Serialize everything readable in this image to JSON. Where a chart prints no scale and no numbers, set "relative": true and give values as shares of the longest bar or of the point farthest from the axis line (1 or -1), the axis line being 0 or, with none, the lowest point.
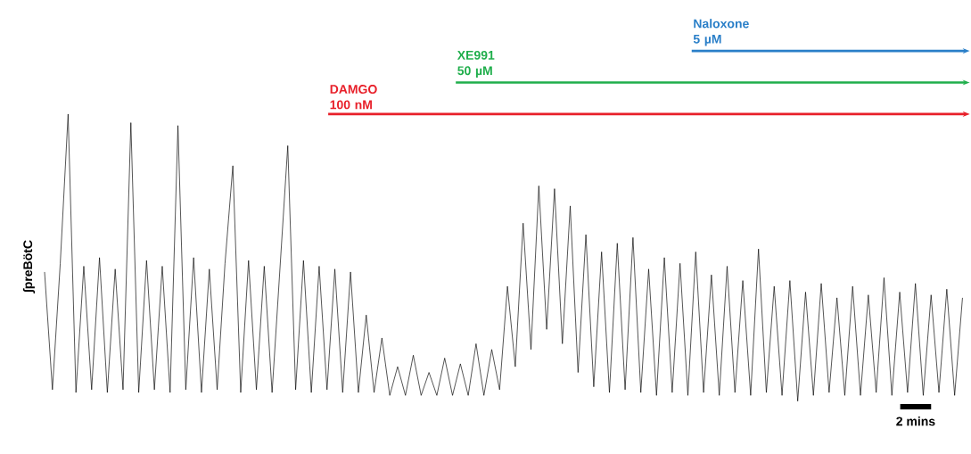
{
  "chart_data": {
    "type": "line",
    "relative": true,
    "ylabel": "∫preBötC",
    "color": "#000000",
    "line_style": "solid",
    "tick_labels": false,
    "categories": [
      null,
      null,
      null,
      null,
      null,
      null,
      null,
      null,
      null,
      null,
      null,
      null,
      null,
      null,
      null,
      null,
      null,
      null,
      null,
      null,
      null,
      null,
      null,
      null,
      null,
      null,
      null,
      null,
      null,
      null,
      null,
      null,
      null,
      null,
      null,
      null,
      null,
      null,
      null,
      null,
      null,
      null,
      null,
      null,
      null,
      null,
      null,
      null,
      null,
      null,
      null,
      null,
      null,
      null,
      null,
      null,
      null,
      null,
      null,
      null,
      null,
      null,
      null,
      null,
      null,
      null,
      null,
      null,
      null,
      null,
      null,
      null,
      null,
      null,
      null,
      null,
      null,
      null,
      null,
      null,
      null,
      null,
      null,
      null,
      null,
      null,
      null,
      null,
      null,
      null,
      null,
      null,
      null,
      null,
      null,
      null,
      null,
      null,
      null,
      null,
      null,
      null,
      null,
      null,
      null,
      null,
      null,
      null,
      null,
      null,
      null,
      null,
      null,
      null,
      null,
      null,
      null,
      null
    ],
    "values": [
      0.45,
      0.04,
      0.48,
      1.0,
      0.03,
      0.47,
      0.04,
      0.5,
      0.03,
      0.46,
      0.04,
      0.97,
      0.03,
      0.49,
      0.04,
      0.47,
      0.03,
      0.96,
      0.04,
      0.5,
      0.03,
      0.46,
      0.04,
      0.48,
      0.82,
      0.03,
      0.49,
      0.04,
      0.47,
      0.03,
      0.46,
      0.89,
      0.04,
      0.49,
      0.03,
      0.47,
      0.04,
      0.46,
      0.03,
      0.45,
      0.03,
      0.3,
      0.03,
      0.22,
      0.02,
      0.12,
      0.02,
      0.16,
      0.02,
      0.1,
      0.02,
      0.15,
      0.02,
      0.13,
      0.02,
      0.2,
      0.02,
      0.18,
      0.04,
      0.4,
      0.12,
      0.62,
      0.18,
      0.75,
      0.25,
      0.74,
      0.2,
      0.68,
      0.1,
      0.58,
      0.05,
      0.52,
      0.03,
      0.55,
      0.04,
      0.57,
      0.03,
      0.46,
      0.02,
      0.5,
      0.03,
      0.48,
      0.02,
      0.52,
      0.03,
      0.44,
      0.02,
      0.47,
      0.03,
      0.42,
      0.02,
      0.53,
      0.03,
      0.4,
      0.02,
      0.42,
      0.0,
      0.38,
      0.02,
      0.41,
      0.03,
      0.36,
      0.02,
      0.4,
      0.02,
      0.37,
      0.03,
      0.43,
      0.02,
      0.38,
      0.03,
      0.41,
      0.02,
      0.37,
      0.03,
      0.39,
      0.02,
      0.36
    ],
    "annotations": [
      "DAMGO 100 nM",
      "XE991 50 µM",
      "Naloxone 5 µM",
      "2 mins"
    ]
  }
}
